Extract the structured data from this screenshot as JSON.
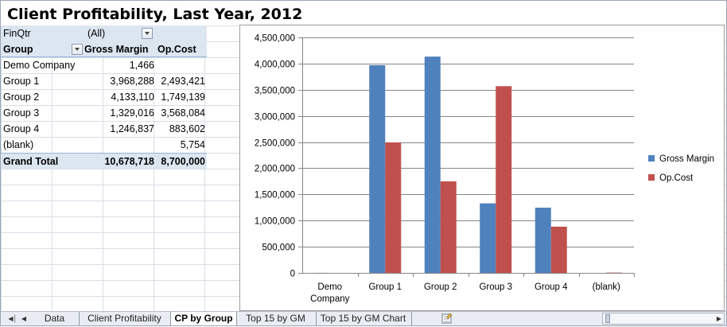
{
  "title": "Client Profitability, Last Year, 2012",
  "pivot": {
    "filter_label": "FinQtr",
    "filter_value": "(All)",
    "headers": [
      "Group",
      "Gross Margin",
      "Op.Cost"
    ],
    "rows": [
      {
        "group": "Demo Company",
        "gross_margin": "1,466",
        "op_cost": ""
      },
      {
        "group": "Group 1",
        "gross_margin": "3,968,288",
        "op_cost": "2,493,421"
      },
      {
        "group": "Group 2",
        "gross_margin": "4,133,110",
        "op_cost": "1,749,139"
      },
      {
        "group": "Group 3",
        "gross_margin": "1,329,016",
        "op_cost": "3,568,084"
      },
      {
        "group": "Group 4",
        "gross_margin": "1,246,837",
        "op_cost": "883,602"
      },
      {
        "group": "(blank)",
        "gross_margin": "",
        "op_cost": "5,754"
      }
    ],
    "total": {
      "label": "Grand Total",
      "gross_margin": "10,678,718",
      "op_cost": "8,700,000"
    }
  },
  "chart_data": {
    "type": "bar",
    "categories": [
      "Demo Company",
      "Group 1",
      "Group 2",
      "Group 3",
      "Group 4",
      "(blank)"
    ],
    "series": [
      {
        "name": "Gross Margin",
        "color": "#4f81bd",
        "values": [
          1466,
          3968288,
          4133110,
          1329016,
          1246837,
          0
        ]
      },
      {
        "name": "Op.Cost",
        "color": "#c0504d",
        "values": [
          0,
          2493421,
          1749139,
          3568084,
          883602,
          5754
        ]
      }
    ],
    "ylim": [
      0,
      4500000
    ],
    "yticks": [
      0,
      500000,
      1000000,
      1500000,
      2000000,
      2500000,
      3000000,
      3500000,
      4000000,
      4500000
    ],
    "ytick_labels": [
      "0",
      "500,000",
      "1,000,000",
      "1,500,000",
      "2,000,000",
      "2,500,000",
      "3,000,000",
      "3,500,000",
      "4,000,000",
      "4,500,000"
    ],
    "grid": true,
    "legend": "right"
  },
  "tabs": [
    {
      "label": "Data",
      "active": false
    },
    {
      "label": "Client Profitability",
      "active": false
    },
    {
      "label": "CP by Group",
      "active": true
    },
    {
      "label": "Top 15 by GM",
      "active": false
    },
    {
      "label": "Top 15 by GM Chart",
      "active": false
    }
  ],
  "icons": {
    "first_sheet": "first-sheet-icon",
    "prev_sheet": "prev-sheet-icon",
    "insert_sheet": "insert-sheet-icon"
  }
}
